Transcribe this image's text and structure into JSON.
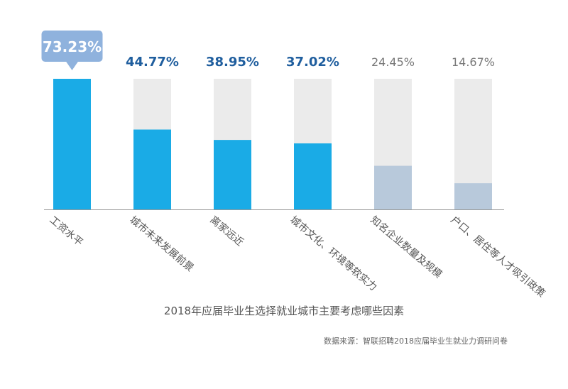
{
  "chart_data": {
    "type": "bar",
    "title": "2018年应届毕业生选择就业城市主要考虑哪些因素",
    "source": "数据来源：智联招聘2018应届毕业生就业力调研问卷",
    "ylim": [
      0,
      73.23
    ],
    "categories": [
      "工资水平",
      "城市未来发展前景",
      "离家远近",
      "城市文化、环境等软实力",
      "知名企业数量及规模",
      "户口、居住等人才吸引政策"
    ],
    "values": [
      73.23,
      44.77,
      38.95,
      37.02,
      24.45,
      14.67
    ],
    "value_labels": [
      "73.23%",
      "44.77%",
      "38.95%",
      "37.02%",
      "24.45%",
      "14.67%"
    ],
    "highlight": [
      true,
      true,
      true,
      true,
      false,
      false
    ],
    "colors": {
      "primary_bar": "#1AABE6",
      "secondary_bar": "#B8C9DB",
      "track": "#EBEBEB",
      "callout": "#8FB2DD",
      "label_primary": "#1F5E9E",
      "label_secondary": "#777777",
      "axis": "#999999"
    }
  }
}
